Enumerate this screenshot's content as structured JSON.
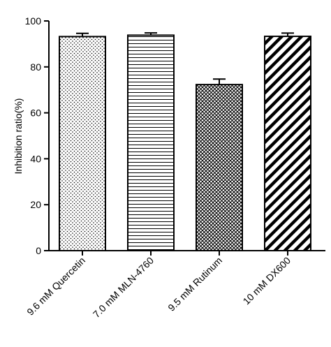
{
  "chart_data": {
    "type": "bar",
    "title": "",
    "xlabel": "",
    "ylabel": "Inhibition ratio(%)",
    "ylim": [
      0,
      100
    ],
    "yticks": [
      0,
      20,
      40,
      60,
      80,
      100
    ],
    "grid": false,
    "legend": "none",
    "categories": [
      "9.6 mM Quercetin",
      "7.0 mM MLN-4760",
      "9.5 mM Rutinum",
      "10 mM DX600"
    ],
    "values": [
      93.2,
      93.8,
      72.3,
      93.3
    ],
    "errors": [
      1.4,
      1.0,
      2.4,
      1.4
    ],
    "patterns": [
      "dots",
      "horizontal-lines",
      "crosshatch",
      "diagonal-stripes"
    ],
    "colors": {
      "stroke": "#000000",
      "fill": "#ffffff"
    }
  }
}
